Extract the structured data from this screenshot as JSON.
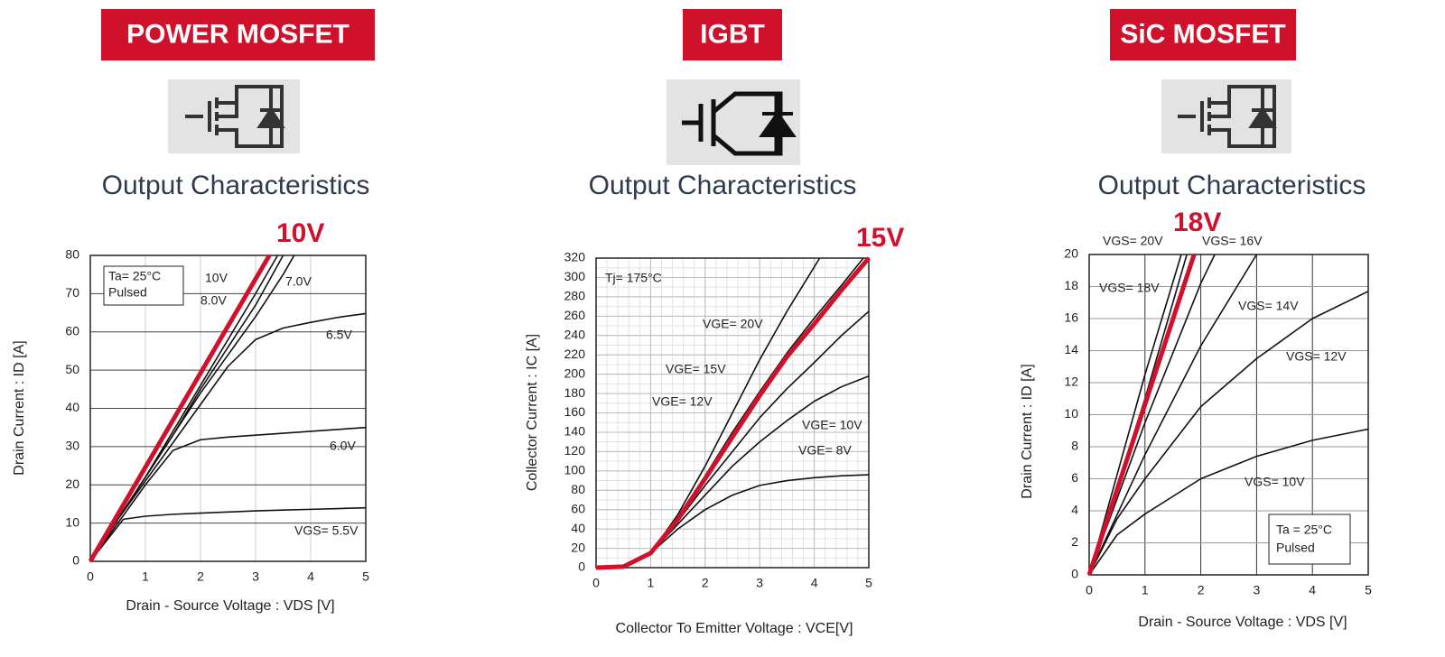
{
  "chart_data": [
    {
      "type": "line",
      "badge": "POWER MOSFET",
      "subtitle": "Output Characteristics",
      "x_label": "Drain - Source Voltage : VDS [V]",
      "y_label": "Drain Current : ID [A]",
      "annotations": [
        "Ta= 25°C",
        "Pulsed"
      ],
      "xlim": [
        0,
        5
      ],
      "xticks": [
        0,
        1,
        2,
        3,
        4,
        5
      ],
      "ylim": [
        0,
        80
      ],
      "yticks": [
        0,
        10,
        20,
        30,
        40,
        50,
        60,
        70,
        80
      ],
      "series": [
        {
          "name": "10V",
          "color": "#111111",
          "x": [
            0,
            0.5,
            1,
            1.5,
            2,
            2.5,
            3,
            3.4
          ],
          "values": [
            0,
            11,
            22,
            34,
            46,
            58,
            70,
            80
          ]
        },
        {
          "name": "8.0V",
          "color": "#111111",
          "x": [
            0,
            0.5,
            1,
            1.5,
            2,
            2.5,
            3,
            3.5
          ],
          "values": [
            0,
            11,
            22,
            33,
            45,
            56,
            67,
            80
          ]
        },
        {
          "name": "7.0V",
          "color": "#111111",
          "x": [
            0,
            0.5,
            1,
            1.5,
            2,
            2.5,
            3,
            3.5,
            3.7
          ],
          "values": [
            0,
            11,
            22,
            33,
            44,
            54,
            64,
            75,
            80
          ]
        },
        {
          "name": "6.5V",
          "color": "#111111",
          "x": [
            0,
            0.5,
            1,
            1.5,
            2,
            2.5,
            3,
            3.5,
            4,
            4.5,
            5
          ],
          "values": [
            0,
            11,
            21,
            31,
            41,
            51,
            58,
            61,
            62.5,
            63.8,
            64.8
          ]
        },
        {
          "name": "6.0V",
          "color": "#111111",
          "x": [
            0,
            0.5,
            1,
            1.5,
            2,
            2.5,
            3,
            3.5,
            4,
            4.5,
            5
          ],
          "values": [
            0,
            10,
            20,
            29,
            31.8,
            32.5,
            33,
            33.5,
            34,
            34.5,
            35
          ]
        },
        {
          "name": "VGS= 5.5V",
          "color": "#111111",
          "x": [
            0,
            0.6,
            1,
            1.5,
            2,
            2.5,
            3,
            3.5,
            4,
            4.5,
            5
          ],
          "values": [
            0,
            11,
            11.8,
            12.3,
            12.6,
            12.9,
            13.2,
            13.4,
            13.6,
            13.8,
            14
          ]
        },
        {
          "name": "10V",
          "color": "#d0112b",
          "x": [
            0,
            3.25
          ],
          "values": [
            0,
            80
          ]
        }
      ]
    },
    {
      "type": "line",
      "badge": "IGBT",
      "subtitle": "Output Characteristics",
      "x_label": "Collector To Emitter Voltage : VCE[V]",
      "y_label": "Collector Current : IC [A]",
      "annotations": [
        "Tj= 175°C"
      ],
      "xlim": [
        0,
        5
      ],
      "xticks": [
        0,
        1,
        2,
        3,
        4,
        5
      ],
      "ylim": [
        0,
        320
      ],
      "yticks": [
        0,
        20,
        40,
        60,
        80,
        100,
        120,
        140,
        160,
        180,
        200,
        220,
        240,
        260,
        280,
        300,
        320
      ],
      "series": [
        {
          "name": "VGE= 20V",
          "color": "#111111",
          "x": [
            0,
            0.5,
            1,
            1.5,
            2,
            2.5,
            3,
            3.5,
            4.1
          ],
          "values": [
            0,
            1,
            15,
            55,
            105,
            160,
            215,
            265,
            320
          ]
        },
        {
          "name": "VGE= 15V",
          "color": "#111111",
          "x": [
            0,
            0.5,
            1,
            1.5,
            2,
            2.5,
            3,
            3.5,
            4,
            4.5,
            4.9
          ],
          "values": [
            0,
            1,
            15,
            52,
            95,
            140,
            182,
            222,
            258,
            292,
            320
          ]
        },
        {
          "name": "VGE= 12V",
          "color": "#111111",
          "x": [
            0,
            0.5,
            1,
            1.5,
            2,
            2.5,
            3,
            3.5,
            4,
            4.5,
            5
          ],
          "values": [
            0,
            1,
            15,
            48,
            85,
            120,
            155,
            185,
            212,
            240,
            265
          ]
        },
        {
          "name": "VGE= 10V",
          "color": "#111111",
          "x": [
            0,
            0.5,
            1,
            1.5,
            2,
            2.5,
            3,
            3.5,
            4,
            4.5,
            5
          ],
          "values": [
            0,
            1,
            15,
            45,
            75,
            105,
            130,
            152,
            172,
            187,
            198
          ]
        },
        {
          "name": "VGE= 8V",
          "color": "#111111",
          "x": [
            0,
            0.5,
            1,
            1.5,
            2,
            2.5,
            3,
            3.5,
            4,
            4.5,
            5
          ],
          "values": [
            0,
            1,
            15,
            40,
            60,
            75,
            85,
            90,
            93,
            95,
            96
          ]
        },
        {
          "name": "15V",
          "color": "#d0112b",
          "x": [
            0,
            0.5,
            1,
            1.5,
            2,
            2.5,
            3,
            3.5,
            4,
            4.5,
            5
          ],
          "values": [
            0,
            1,
            15,
            50,
            92,
            135,
            178,
            218,
            252,
            287,
            320
          ]
        }
      ]
    },
    {
      "type": "line",
      "badge": "SiC MOSFET",
      "subtitle": "Output Characteristics",
      "x_label": "Drain - Source Voltage : VDS [V]",
      "y_label": "Drain Current : ID [A]",
      "annotations": [
        "Ta = 25°C",
        "Pulsed"
      ],
      "xlim": [
        0,
        5
      ],
      "xticks": [
        0,
        1,
        2,
        3,
        4,
        5
      ],
      "ylim": [
        0,
        20
      ],
      "yticks": [
        0,
        2,
        4,
        6,
        8,
        10,
        12,
        14,
        16,
        18,
        20
      ],
      "series": [
        {
          "name": "VGS= 20V",
          "color": "#111111",
          "x": [
            0,
            1,
            1.65
          ],
          "values": [
            0,
            12.5,
            20
          ]
        },
        {
          "name": "VGS= 16V",
          "color": "#111111",
          "x": [
            0,
            1,
            2,
            2.25
          ],
          "values": [
            0,
            9.5,
            18.2,
            20
          ]
        },
        {
          "name": "VGS= 18V",
          "color": "#111111",
          "x": [
            0,
            1,
            1.75
          ],
          "values": [
            0,
            11,
            20
          ]
        },
        {
          "name": "VGS= 14V",
          "color": "#111111",
          "x": [
            0,
            1,
            2,
            3
          ],
          "values": [
            0,
            7.5,
            14.3,
            20
          ]
        },
        {
          "name": "VGS= 12V",
          "color": "#111111",
          "x": [
            0,
            0.5,
            1,
            2,
            3,
            4,
            5
          ],
          "values": [
            0,
            3.5,
            6,
            10.5,
            13.5,
            16,
            17.7
          ]
        },
        {
          "name": "VGS= 10V",
          "color": "#111111",
          "x": [
            0,
            0.5,
            1,
            2,
            3,
            4,
            5
          ],
          "values": [
            0,
            2.5,
            3.8,
            6,
            7.4,
            8.4,
            9.1
          ]
        },
        {
          "name": "18V",
          "color": "#d0112b",
          "x": [
            0,
            1.88
          ],
          "values": [
            0,
            20
          ]
        }
      ]
    }
  ]
}
